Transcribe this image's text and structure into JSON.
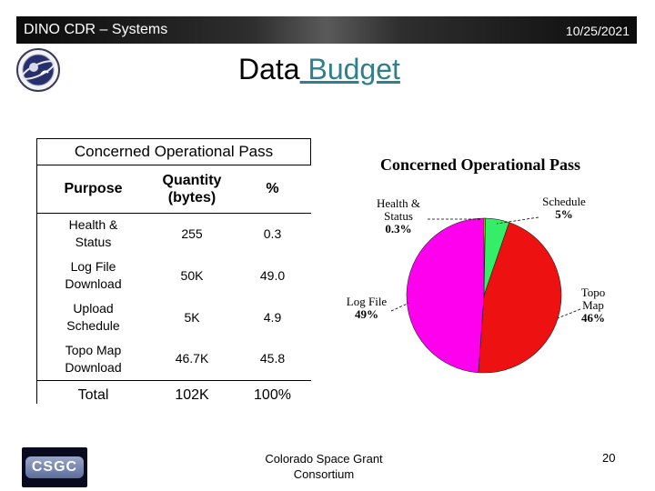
{
  "header": {
    "left_text": "DINO CDR – Systems",
    "date": "10/25/2021"
  },
  "logos": {
    "seal_icon": "dino-mission-seal-icon",
    "footer_icon": "csgc-logo-icon",
    "footer_text": "CSGC"
  },
  "title": {
    "part1": "Data",
    "part2": " Budget"
  },
  "table": {
    "caption": "Concerned Operational Pass",
    "headers": [
      "Purpose",
      "Quantity\n(bytes)",
      "%"
    ],
    "rows": [
      [
        "Health &\nStatus",
        "255",
        "0.3"
      ],
      [
        "Log File\nDownload",
        "50K",
        "49.0"
      ],
      [
        "Upload\nSchedule",
        "5K",
        "4.9"
      ],
      [
        "Topo Map\nDownload",
        "46.7K",
        "45.8"
      ]
    ],
    "total": [
      "Total",
      "102K",
      "100%"
    ]
  },
  "chart_data": {
    "type": "pie",
    "title": "Concerned Operational Pass",
    "slices": [
      {
        "name": "Health & Status",
        "label_lines": [
          "Health &",
          "Status",
          "0.3%"
        ],
        "value": 0.3,
        "color": "#ffff00"
      },
      {
        "name": "Schedule",
        "label_lines": [
          "Schedule",
          "5%"
        ],
        "value": 5,
        "color": "#33ee66"
      },
      {
        "name": "Topo Map",
        "label_lines": [
          "Topo",
          "Map",
          "46%"
        ],
        "value": 46,
        "color": "#ee1111"
      },
      {
        "name": "Log File",
        "label_lines": [
          "Log File",
          "49%"
        ],
        "value": 49,
        "color": "#ff00ee"
      }
    ]
  },
  "footer": {
    "org_line1": "Colorado Space Grant",
    "org_line2": "Consortium",
    "page_number": "20"
  }
}
